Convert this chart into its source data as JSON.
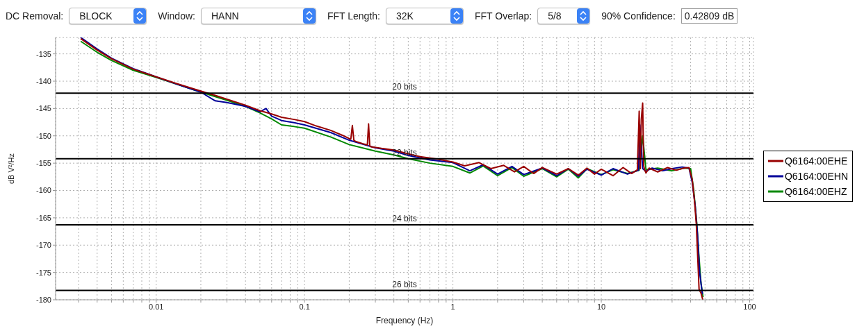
{
  "chart_data": {
    "type": "line",
    "annotations": [
      "DC Removal:",
      "BLOCK",
      "Window:",
      "HANN",
      "FFT Length:",
      "32K",
      "FFT Overlap:",
      "5/8",
      "90% Confidence:",
      "0.42809 dB"
    ],
    "xlabel": "Frequency (Hz)",
    "ylabel": "dB V²/Hz",
    "log": "x",
    "grid": true,
    "legend": "right",
    "marker": "none",
    "line_style": "solid",
    "xlim": [
      0.0021,
      106
    ],
    "xticks": [
      {
        "value": 0.003,
        "label": null
      },
      {
        "value": 0.004,
        "label": null
      },
      {
        "value": 0.005,
        "label": null
      },
      {
        "value": 0.006,
        "label": null
      },
      {
        "value": 0.007,
        "label": null
      },
      {
        "value": 0.008,
        "label": null
      },
      {
        "value": 0.009,
        "label": null
      },
      0.01,
      {
        "value": 0.02,
        "label": null
      },
      {
        "value": 0.03,
        "label": null
      },
      {
        "value": 0.04,
        "label": null
      },
      {
        "value": 0.05,
        "label": null
      },
      {
        "value": 0.06,
        "label": null
      },
      {
        "value": 0.07,
        "label": null
      },
      {
        "value": 0.08,
        "label": null
      },
      {
        "value": 0.09,
        "label": null
      },
      0.1,
      {
        "value": 0.2,
        "label": null
      },
      {
        "value": 0.3,
        "label": null
      },
      {
        "value": 0.4,
        "label": null
      },
      {
        "value": 0.5,
        "label": null
      },
      {
        "value": 0.6,
        "label": null
      },
      {
        "value": 0.7,
        "label": null
      },
      {
        "value": 0.8,
        "label": null
      },
      {
        "value": 0.9,
        "label": null
      },
      1,
      {
        "value": 2,
        "label": null
      },
      {
        "value": 3,
        "label": null
      },
      {
        "value": 4,
        "label": null
      },
      {
        "value": 5,
        "label": null
      },
      {
        "value": 6,
        "label": null
      },
      {
        "value": 7,
        "label": null
      },
      {
        "value": 8,
        "label": null
      },
      {
        "value": 9,
        "label": null
      },
      10,
      {
        "value": 20,
        "label": null
      },
      {
        "value": 30,
        "label": null
      },
      {
        "value": 40,
        "label": null
      },
      {
        "value": 50,
        "label": null
      },
      {
        "value": 60,
        "label": null
      },
      {
        "value": 70,
        "label": null
      },
      {
        "value": 80,
        "label": null
      },
      {
        "value": 90,
        "label": null
      },
      100
    ],
    "ylim": [
      -180,
      -132
    ],
    "yticks": [
      -180,
      -175,
      -170,
      -165,
      -160,
      -155,
      -150,
      -145,
      -140,
      -135
    ],
    "ref_lines": [
      {
        "axis": "y",
        "value": -142.2,
        "label": "20 bits",
        "color": "#000000"
      },
      {
        "axis": "y",
        "value": -154.2,
        "label": "22 bits",
        "color": "#000000"
      },
      {
        "axis": "y",
        "value": -166.3,
        "label": "24 bits",
        "color": "#000000"
      },
      {
        "axis": "y",
        "value": -178.3,
        "label": "26 bits",
        "color": "#000000"
      }
    ],
    "series": [
      {
        "name": "Q6164:00EHE",
        "color": "#990000",
        "x": [
          0.0031,
          0.004,
          0.005,
          0.007,
          0.01,
          0.014,
          0.02,
          0.025,
          0.03,
          0.04,
          0.05,
          0.06,
          0.07,
          0.085,
          0.1,
          0.12,
          0.15,
          0.18,
          0.2,
          0.205,
          0.21,
          0.215,
          0.22,
          0.25,
          0.26,
          0.265,
          0.27,
          0.275,
          0.28,
          0.33,
          0.4,
          0.5,
          0.6,
          0.8,
          1,
          1.2,
          1.5,
          1.8,
          2.2,
          2.6,
          3,
          3.5,
          4,
          5,
          6,
          7,
          8,
          9,
          10,
          12,
          14,
          16,
          17.5,
          18,
          18.3,
          18.6,
          19,
          19.3,
          19.6,
          20,
          21,
          24,
          28,
          32,
          36,
          39,
          41,
          42.5,
          43.7,
          44.6,
          45.6,
          47,
          48.3
        ],
        "values": [
          -132.2,
          -134.3,
          -135.9,
          -137.8,
          -139.2,
          -140.5,
          -141.8,
          -142.6,
          -143.3,
          -144.4,
          -145.4,
          -146.0,
          -146.6,
          -147.0,
          -147.4,
          -148.2,
          -149.0,
          -149.9,
          -150.5,
          -150.6,
          -148.1,
          -150.8,
          -151.0,
          -151.5,
          -151.6,
          -151.7,
          -147.8,
          -151.8,
          -152.0,
          -152.3,
          -152.6,
          -153.3,
          -153.8,
          -154.3,
          -154.8,
          -155.5,
          -154.9,
          -156.0,
          -155.4,
          -156.6,
          -155.6,
          -156.9,
          -155.8,
          -157.0,
          -156.0,
          -157.2,
          -155.9,
          -157.0,
          -156.1,
          -157.3,
          -155.8,
          -156.9,
          -156.2,
          -145.5,
          -156.0,
          -147.0,
          -144.0,
          -155.5,
          -156.2,
          -156.8,
          -155.9,
          -156.6,
          -155.8,
          -156.3,
          -155.9,
          -155.8,
          -158.0,
          -162.0,
          -166.3,
          -172.0,
          -178.1,
          -178.8,
          -180.0
        ]
      },
      {
        "name": "Q6164:00EHN",
        "color": "#000099",
        "x": [
          0.0031,
          0.004,
          0.005,
          0.007,
          0.01,
          0.014,
          0.02,
          0.025,
          0.03,
          0.04,
          0.05,
          0.055,
          0.06,
          0.07,
          0.085,
          0.1,
          0.15,
          0.2,
          0.3,
          0.4,
          0.5,
          0.7,
          1,
          1.3,
          1.6,
          2,
          2.5,
          3,
          4,
          5,
          6,
          7,
          8,
          10,
          12,
          15,
          17.8,
          18.2,
          19,
          20,
          22,
          26,
          30,
          35,
          39,
          41,
          43,
          44.5,
          46,
          48
        ],
        "values": [
          -132.0,
          -134.1,
          -135.8,
          -137.7,
          -139.2,
          -140.6,
          -142.0,
          -143.6,
          -143.9,
          -144.6,
          -145.6,
          -145.0,
          -146.4,
          -147.2,
          -147.6,
          -148.0,
          -149.4,
          -150.8,
          -152.2,
          -152.8,
          -153.6,
          -154.4,
          -154.9,
          -156.4,
          -155.3,
          -157.0,
          -155.6,
          -157.1,
          -155.9,
          -157.3,
          -156.0,
          -157.4,
          -156.1,
          -157.2,
          -156.0,
          -157.0,
          -156.3,
          -148.0,
          -156.0,
          -156.5,
          -155.9,
          -156.4,
          -156.0,
          -155.7,
          -155.9,
          -158.5,
          -163.0,
          -168.0,
          -175.0,
          -179.0
        ]
      },
      {
        "name": "Q6164:00EHZ",
        "color": "#008800",
        "x": [
          0.0031,
          0.004,
          0.005,
          0.007,
          0.01,
          0.014,
          0.02,
          0.03,
          0.04,
          0.05,
          0.06,
          0.07,
          0.085,
          0.1,
          0.15,
          0.2,
          0.3,
          0.4,
          0.5,
          0.7,
          1,
          1.3,
          1.6,
          2,
          2.5,
          3,
          4,
          5,
          6,
          7,
          8,
          10,
          12,
          15,
          18,
          19,
          20,
          24,
          30,
          36,
          40,
          42,
          44,
          45.5,
          47,
          48.5
        ],
        "values": [
          -132.7,
          -134.7,
          -136.2,
          -138.0,
          -139.3,
          -140.6,
          -142.0,
          -143.5,
          -144.6,
          -145.8,
          -146.9,
          -148.0,
          -148.3,
          -148.6,
          -150.2,
          -151.6,
          -152.8,
          -153.5,
          -154.2,
          -155.0,
          -155.6,
          -156.8,
          -155.5,
          -157.3,
          -155.8,
          -157.4,
          -156.0,
          -157.5,
          -156.1,
          -157.7,
          -156.0,
          -157.1,
          -156.2,
          -156.9,
          -156.3,
          -150.0,
          -156.2,
          -155.9,
          -156.4,
          -155.9,
          -156.0,
          -160.0,
          -166.0,
          -172.0,
          -177.0,
          -179.5
        ]
      }
    ]
  }
}
